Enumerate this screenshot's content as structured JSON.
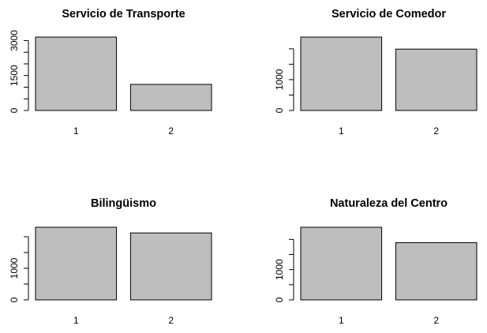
{
  "colors": {
    "bar_fill": "#bebebe",
    "bar_stroke": "#000000",
    "axis": "#000000",
    "background": "#ffffff"
  },
  "chart_data": [
    {
      "type": "bar",
      "title": "Servicio de Transporte",
      "categories": [
        "1",
        "2"
      ],
      "values": [
        3150,
        1120
      ],
      "ylim": [
        0,
        3150
      ],
      "yticks": [
        0,
        500,
        1000,
        1500,
        2000,
        2500,
        3000
      ],
      "ytick_labels": [
        "0",
        "",
        "",
        "1500",
        "",
        "",
        "3000"
      ],
      "xlabel": "",
      "ylabel": "",
      "grid": false
    },
    {
      "type": "bar",
      "title": "Servicio de Comedor",
      "categories": [
        "1",
        "2"
      ],
      "values": [
        2380,
        1990
      ],
      "ylim": [
        0,
        2380
      ],
      "yticks": [
        0,
        500,
        1000,
        1500,
        2000
      ],
      "ytick_labels": [
        "0",
        "",
        "1000",
        "",
        ""
      ],
      "xlabel": "",
      "ylabel": "",
      "grid": false
    },
    {
      "type": "bar",
      "title": "Bilingüismo",
      "categories": [
        "1",
        "2"
      ],
      "values": [
        2300,
        2120
      ],
      "ylim": [
        0,
        2300
      ],
      "yticks": [
        0,
        500,
        1000,
        1500,
        2000
      ],
      "ytick_labels": [
        "0",
        "",
        "1000",
        "",
        ""
      ],
      "xlabel": "",
      "ylabel": "",
      "grid": false
    },
    {
      "type": "bar",
      "title": "Naturaleza del Centro",
      "categories": [
        "1",
        "2"
      ],
      "values": [
        2400,
        1890
      ],
      "ylim": [
        0,
        2400
      ],
      "yticks": [
        0,
        500,
        1000,
        1500,
        2000
      ],
      "ytick_labels": [
        "0",
        "",
        "1000",
        "",
        ""
      ],
      "xlabel": "",
      "ylabel": "",
      "grid": false
    }
  ]
}
